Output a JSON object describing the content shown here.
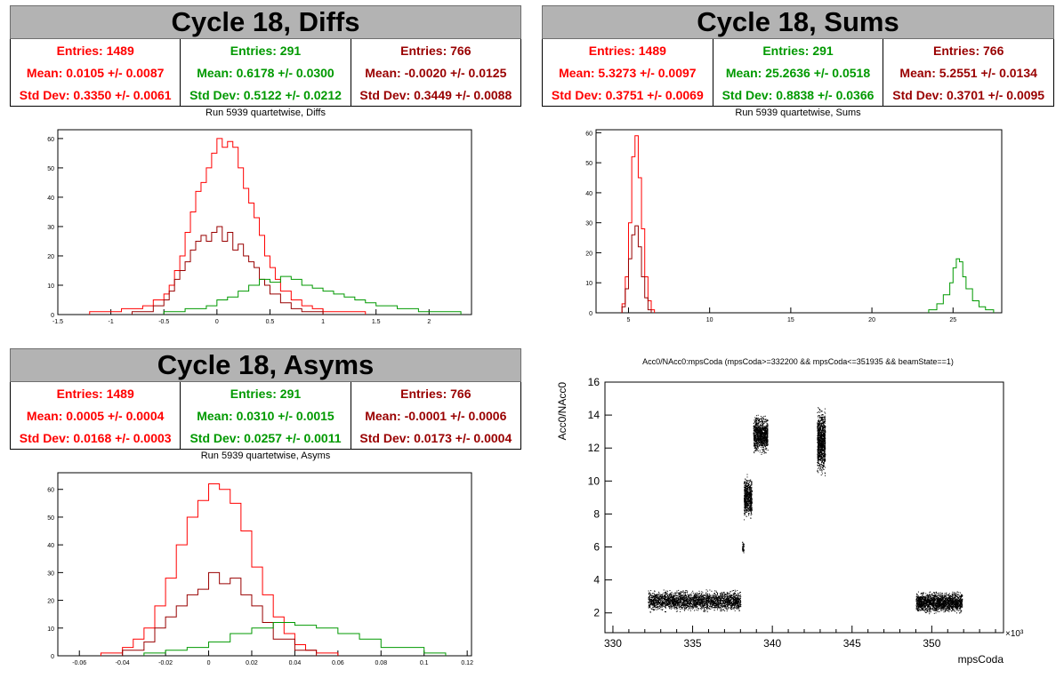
{
  "panels": {
    "diffs": {
      "title": "Cycle 18, Diffs",
      "subtitle": "Run 5939 quartetwise, Diffs",
      "stats": [
        {
          "entries": "Entries: 1489",
          "mean": "Mean: 0.0105 +/- 0.0087",
          "std": "Std Dev: 0.3350 +/- 0.0061",
          "color": "#ff0000"
        },
        {
          "entries": "Entries: 291",
          "mean": "Mean: 0.6178 +/- 0.0300",
          "std": "Std Dev: 0.5122 +/- 0.0212",
          "color": "#009900"
        },
        {
          "entries": "Entries: 766",
          "mean": "Mean: -0.0020 +/- 0.0125",
          "std": "Std Dev: 0.3449 +/- 0.0088",
          "color": "#990000"
        }
      ]
    },
    "sums": {
      "title": "Cycle 18, Sums",
      "subtitle": "Run 5939 quartetwise, Sums",
      "stats": [
        {
          "entries": "Entries: 1489",
          "mean": "Mean: 5.3273 +/- 0.0097",
          "std": "Std Dev: 0.3751 +/- 0.0069",
          "color": "#ff0000"
        },
        {
          "entries": "Entries: 291",
          "mean": "Mean: 25.2636 +/- 0.0518",
          "std": "Std Dev: 0.8838 +/- 0.0366",
          "color": "#009900"
        },
        {
          "entries": "Entries: 766",
          "mean": "Mean: 5.2551 +/- 0.0134",
          "std": "Std Dev: 0.3701 +/- 0.0095",
          "color": "#990000"
        }
      ]
    },
    "asyms": {
      "title": "Cycle 18, Asyms",
      "subtitle": "Run 5939 quartetwise, Asyms",
      "stats": [
        {
          "entries": "Entries: 1489",
          "mean": "Mean: 0.0005 +/- 0.0004",
          "std": "Std Dev: 0.0168 +/- 0.0003",
          "color": "#ff0000"
        },
        {
          "entries": "Entries: 291",
          "mean": "Mean: 0.0310 +/- 0.0015",
          "std": "Std Dev: 0.0257 +/- 0.0011",
          "color": "#009900"
        },
        {
          "entries": "Entries: 766",
          "mean": "Mean: -0.0001 +/- 0.0006",
          "std": "Std Dev: 0.0173 +/- 0.0004",
          "color": "#990000"
        }
      ]
    },
    "scatter": {
      "title": "Acc0/NAcc0:mpsCoda (mpsCoda>=332200 && mpsCoda<=351935 && beamState==1)"
    }
  },
  "chart_data": [
    {
      "type": "bar",
      "title": "",
      "xlim": [
        -1.5,
        2.4
      ],
      "ylim": [
        0,
        63
      ],
      "xticks": [
        "-1.5",
        "-1",
        "-0.5",
        "0",
        "0.5",
        "1",
        "1.5",
        "2"
      ],
      "yticks": [
        "0",
        "10",
        "20",
        "30",
        "40",
        "50",
        "60"
      ],
      "series": [
        {
          "color": "#ff0000",
          "bins_x": [
            -1.2,
            -0.9,
            -0.8,
            -0.7,
            -0.6,
            -0.5,
            -0.45,
            -0.4,
            -0.35,
            -0.3,
            -0.25,
            -0.2,
            -0.15,
            -0.1,
            -0.05,
            0,
            0.05,
            0.1,
            0.15,
            0.2,
            0.25,
            0.3,
            0.35,
            0.4,
            0.45,
            0.5,
            0.55,
            0.6,
            0.7,
            0.8,
            0.9,
            1.0,
            1.1
          ],
          "counts": [
            1,
            2,
            2,
            3,
            5,
            7,
            10,
            15,
            20,
            28,
            35,
            42,
            45,
            50,
            55,
            60,
            57,
            59,
            57,
            50,
            43,
            38,
            33,
            27,
            20,
            16,
            12,
            8,
            5,
            3,
            2,
            1,
            1
          ]
        },
        {
          "color": "#990000",
          "bins_x": [
            -0.8,
            -0.6,
            -0.5,
            -0.45,
            -0.4,
            -0.35,
            -0.3,
            -0.25,
            -0.2,
            -0.15,
            -0.1,
            -0.05,
            0,
            0.05,
            0.1,
            0.15,
            0.2,
            0.25,
            0.3,
            0.35,
            0.4,
            0.45,
            0.5,
            0.6,
            0.7,
            0.8
          ],
          "counts": [
            1,
            3,
            5,
            8,
            12,
            15,
            18,
            22,
            25,
            27,
            25,
            28,
            30,
            25,
            28,
            22,
            24,
            20,
            18,
            16,
            12,
            10,
            7,
            4,
            2,
            1
          ]
        },
        {
          "color": "#009900",
          "bins_x": [
            -0.5,
            -0.3,
            -0.1,
            0,
            0.1,
            0.2,
            0.3,
            0.4,
            0.5,
            0.6,
            0.7,
            0.8,
            0.9,
            1.0,
            1.1,
            1.2,
            1.3,
            1.4,
            1.5,
            1.7,
            1.9,
            2.1
          ],
          "counts": [
            1,
            2,
            3,
            5,
            6,
            8,
            10,
            12,
            11,
            13,
            12,
            10,
            9,
            8,
            7,
            6,
            5,
            4,
            3,
            2,
            1,
            1
          ]
        }
      ]
    },
    {
      "type": "bar",
      "title": "",
      "xlim": [
        3,
        28
      ],
      "ylim": [
        0,
        61
      ],
      "xticks": [
        "5",
        "10",
        "15",
        "20",
        "25"
      ],
      "yticks": [
        "0",
        "10",
        "20",
        "30",
        "40",
        "50",
        "60"
      ],
      "series": [
        {
          "color": "#ff0000",
          "bins_x": [
            4.6,
            4.8,
            5.0,
            5.2,
            5.4,
            5.6,
            5.8,
            6.0,
            6.2,
            6.4
          ],
          "counts": [
            3,
            12,
            30,
            52,
            59,
            45,
            28,
            12,
            4,
            1
          ]
        },
        {
          "color": "#990000",
          "bins_x": [
            4.6,
            4.8,
            5.0,
            5.2,
            5.4,
            5.6,
            5.8,
            6.0,
            6.2
          ],
          "counts": [
            2,
            8,
            18,
            26,
            29,
            22,
            12,
            5,
            1
          ]
        },
        {
          "color": "#009900",
          "bins_x": [
            23.5,
            24.0,
            24.4,
            24.8,
            25.0,
            25.2,
            25.4,
            25.6,
            25.8,
            26.2,
            26.6,
            27.0
          ],
          "counts": [
            1,
            3,
            6,
            10,
            15,
            18,
            17,
            12,
            8,
            4,
            2,
            1
          ]
        }
      ]
    },
    {
      "type": "bar",
      "title": "",
      "xlim": [
        -0.07,
        0.122
      ],
      "ylim": [
        0,
        66
      ],
      "xticks": [
        "-0.06",
        "-0.04",
        "-0.02",
        "0",
        "0.02",
        "0.04",
        "0.06",
        "0.08",
        "0.1",
        "0.12"
      ],
      "yticks": [
        "0",
        "10",
        "20",
        "30",
        "40",
        "50",
        "60"
      ],
      "series": [
        {
          "color": "#ff0000",
          "bins_x": [
            -0.05,
            -0.04,
            -0.035,
            -0.03,
            -0.025,
            -0.02,
            -0.015,
            -0.01,
            -0.005,
            0,
            0.005,
            0.01,
            0.015,
            0.02,
            0.025,
            0.03,
            0.035,
            0.04,
            0.045,
            0.05
          ],
          "counts": [
            1,
            3,
            6,
            10,
            18,
            28,
            40,
            50,
            56,
            62,
            60,
            55,
            45,
            32,
            22,
            14,
            8,
            4,
            2,
            1
          ]
        },
        {
          "color": "#990000",
          "bins_x": [
            -0.04,
            -0.03,
            -0.025,
            -0.02,
            -0.015,
            -0.01,
            -0.005,
            0,
            0.005,
            0.01,
            0.015,
            0.02,
            0.025,
            0.03,
            0.04
          ],
          "counts": [
            2,
            5,
            10,
            14,
            18,
            22,
            24,
            30,
            26,
            28,
            22,
            18,
            12,
            6,
            2
          ]
        },
        {
          "color": "#009900",
          "bins_x": [
            -0.03,
            -0.02,
            -0.01,
            0,
            0.01,
            0.02,
            0.03,
            0.04,
            0.05,
            0.06,
            0.07,
            0.08,
            0.1
          ],
          "counts": [
            1,
            2,
            3,
            5,
            8,
            10,
            12,
            11,
            10,
            8,
            6,
            3,
            1
          ]
        }
      ]
    },
    {
      "type": "scatter",
      "title": "Acc0/NAcc0:mpsCoda (mpsCoda>=332200 && mpsCoda<=351935 && beamState==1)",
      "xlabel": "mpsCoda",
      "ylabel": "Acc0/NAcc0",
      "xlim": [
        329.5,
        354.5
      ],
      "ylim": [
        0.8,
        16
      ],
      "x_multiplier": "×10³",
      "xticks": [
        "330",
        "335",
        "340",
        "345",
        "350"
      ],
      "yticks": [
        "2",
        "4",
        "6",
        "8",
        "10",
        "12",
        "14",
        "16"
      ],
      "clusters": [
        {
          "x": [
            332.2,
            338.0
          ],
          "y": [
            2.0,
            3.5
          ]
        },
        {
          "x": [
            338.1,
            338.2
          ],
          "y": [
            5.5,
            6.5
          ]
        },
        {
          "x": [
            338.2,
            338.7
          ],
          "y": [
            7.5,
            10.5
          ]
        },
        {
          "x": [
            338.8,
            339.7
          ],
          "y": [
            11.5,
            14.2
          ]
        },
        {
          "x": [
            342.8,
            343.3
          ],
          "y": [
            10.0,
            14.8
          ]
        },
        {
          "x": [
            349.0,
            351.9
          ],
          "y": [
            1.9,
            3.4
          ]
        }
      ]
    }
  ]
}
